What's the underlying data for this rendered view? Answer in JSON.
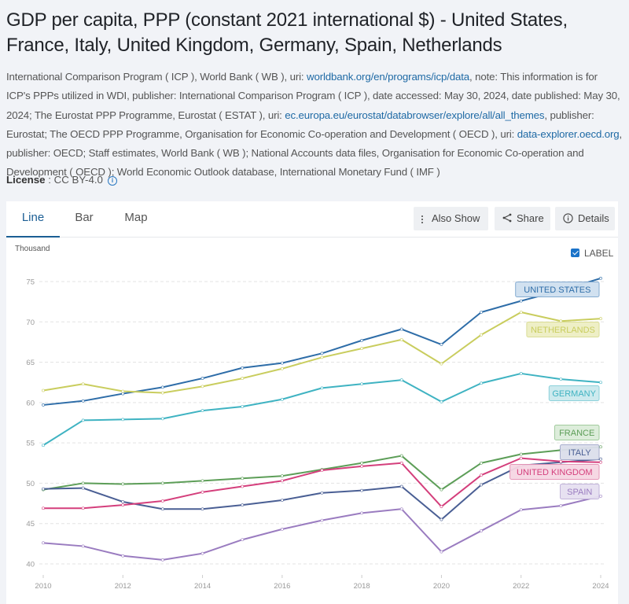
{
  "page": {
    "title": "GDP per capita, PPP (constant 2021 international $) - United States, France, Italy, United Kingdom, Germany, Spain, Netherlands",
    "source": [
      {
        "text": "International Comparison Program ( ICP ), World Bank ( WB ), uri: "
      },
      {
        "text": "worldbank.org/en/programs/icp/data",
        "link": true
      },
      {
        "text": ", note: This information is for ICP's PPPs utilized in WDI, publisher: International Comparison Program ( ICP ), date accessed: May 30, 2024, date published: May 30, 2024; The Eurostat PPP Programme, Eurostat ( ESTAT ), uri: "
      },
      {
        "text": "ec.europa.eu/eurostat/databrowser/explore/all/all_themes",
        "link": true
      },
      {
        "text": ", publisher: Eurostat; The OECD PPP Programme, Organisation for Economic Co-operation and Development ( OECD ), uri: "
      },
      {
        "text": "data-explorer.oecd.org",
        "link": true
      },
      {
        "text": ", publisher: OECD; Staff estimates, World Bank ( WB ); National Accounts data files, Organisation for Economic Co-operation and Development ( OECD ); World Economic Outlook database, International Monetary Fund ( IMF )"
      }
    ],
    "license_label": "License",
    "license_value": " : CC BY-4.0",
    "license_icon": "info-icon"
  },
  "tabs": [
    {
      "label": "Line",
      "active": true
    },
    {
      "label": "Bar",
      "active": false
    },
    {
      "label": "Map",
      "active": false
    }
  ],
  "toolbar": {
    "also_show": {
      "label": "Also Show",
      "icon": "kebab-icon"
    },
    "share": {
      "label": "Share",
      "icon": "share-icon"
    },
    "details": {
      "label": "Details",
      "icon": "info-icon"
    }
  },
  "label_toggle": {
    "label": "LABEL",
    "checked": true
  },
  "chart_data": {
    "type": "line",
    "title": "GDP per capita, PPP (constant 2021 international $)",
    "unit_label": "Thousand",
    "xlabel": "",
    "ylabel": "Thousand",
    "x": [
      2010,
      2011,
      2012,
      2013,
      2014,
      2015,
      2016,
      2017,
      2018,
      2019,
      2020,
      2021,
      2022,
      2023,
      2024
    ],
    "x_ticks": [
      2010,
      2012,
      2014,
      2016,
      2018,
      2020,
      2022,
      2024
    ],
    "y_ticks": [
      40,
      45,
      50,
      55,
      60,
      65,
      70,
      75
    ],
    "ylim": [
      40,
      75
    ],
    "xlim": [
      2010,
      2024
    ],
    "grid": "horizontal-dashed",
    "legend": "inline-right-labels",
    "series": [
      {
        "name": "UNITED STATES",
        "color": "#2e6da8",
        "label_bg": "#cfe0f0",
        "label_border": "#7ea7cf",
        "values": [
          59.7,
          60.2,
          61.1,
          61.9,
          63.0,
          64.3,
          64.9,
          66.1,
          67.7,
          69.1,
          67.2,
          71.2,
          72.6,
          73.9,
          75.4
        ]
      },
      {
        "name": "NETHERLANDS",
        "color": "#c9cd5e",
        "label_bg": "#eeefc4",
        "label_border": "#d9dc91",
        "values": [
          61.5,
          62.3,
          61.4,
          61.2,
          62.0,
          63.0,
          64.2,
          65.6,
          66.7,
          67.8,
          64.8,
          68.4,
          71.2,
          70.1,
          70.4
        ]
      },
      {
        "name": "GERMANY",
        "color": "#3fb3c2",
        "label_bg": "#cbe9ee",
        "label_border": "#86cfd9",
        "values": [
          54.7,
          57.8,
          57.9,
          58.0,
          59.0,
          59.5,
          60.4,
          61.8,
          62.3,
          62.8,
          60.1,
          62.4,
          63.6,
          62.9,
          62.5
        ]
      },
      {
        "name": "FRANCE",
        "color": "#5d9e58",
        "label_bg": "#dcedda",
        "label_border": "#9cc998",
        "values": [
          49.2,
          50.0,
          49.9,
          50.0,
          50.3,
          50.6,
          50.9,
          51.7,
          52.5,
          53.4,
          49.2,
          52.5,
          53.6,
          54.1,
          54.5
        ]
      },
      {
        "name": "ITALY",
        "color": "#4a5f94",
        "label_bg": "#dcdfec",
        "label_border": "#a4aacb",
        "values": [
          49.3,
          49.4,
          47.7,
          46.8,
          46.8,
          47.3,
          47.9,
          48.8,
          49.1,
          49.6,
          45.5,
          49.8,
          52.2,
          52.6,
          53.0
        ]
      },
      {
        "name": "UNITED KINGDOM",
        "color": "#d43f7c",
        "label_bg": "#f6d6e3",
        "label_border": "#e592b5",
        "values": [
          46.9,
          46.9,
          47.3,
          47.8,
          48.9,
          49.6,
          50.3,
          51.6,
          52.1,
          52.5,
          47.1,
          51.0,
          53.1,
          52.7,
          52.6
        ]
      },
      {
        "name": "SPAIN",
        "color": "#9a7cc0",
        "label_bg": "#e6e0f1",
        "label_border": "#bfb0d9",
        "values": [
          42.6,
          42.2,
          41.0,
          40.5,
          41.3,
          43.0,
          44.3,
          45.4,
          46.3,
          46.8,
          41.5,
          44.1,
          46.7,
          47.2,
          48.4
        ]
      }
    ]
  }
}
